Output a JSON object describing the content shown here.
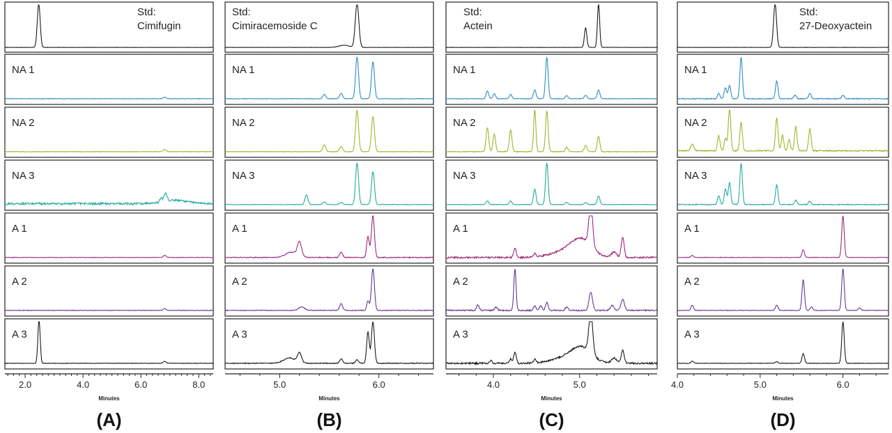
{
  "figure": {
    "colors": {
      "std": "#1a1a1a",
      "NA 1": "#2b8cc4",
      "NA 2": "#9fb52b",
      "NA 3": "#23a8a0",
      "A 1": "#9b2a78",
      "A 2": "#6a3592",
      "A 3": "#1a1a1a"
    }
  },
  "chart_data": [
    {
      "type": "line",
      "panel_label": "(A)",
      "xlabel": "Minutes",
      "xlim": [
        1.3,
        8.5
      ],
      "x_ticks": [
        "2.0",
        "4.0",
        "6.0",
        "8.0"
      ],
      "x_tick_values": [
        2,
        4,
        6,
        8
      ],
      "std_label": [
        "Std:",
        "Cimifugin"
      ],
      "rows": [
        {
          "label": "",
          "key": "std",
          "peaks": [
            [
              2.47,
              1.0,
              0.05
            ]
          ],
          "baseline": 0.03,
          "noise": 0.004
        },
        {
          "label": "NA 1",
          "key": "NA 1",
          "peaks": [
            [
              6.82,
              0.04,
              0.05
            ]
          ],
          "baseline": 0.05,
          "noise": 0.006
        },
        {
          "label": "NA 2",
          "key": "NA 2",
          "peaks": [
            [
              6.82,
              0.05,
              0.05
            ]
          ],
          "baseline": 0.05,
          "noise": 0.006
        },
        {
          "label": "NA 3",
          "key": "NA 3",
          "peaks": [
            [
              6.85,
              0.18,
              0.05
            ],
            [
              6.7,
              0.08,
              0.05
            ],
            [
              7.2,
              0.08,
              0.4
            ]
          ],
          "baseline": 0.07,
          "noise": 0.025
        },
        {
          "label": "A 1",
          "key": "A 1",
          "peaks": [
            [
              6.82,
              0.05,
              0.05
            ]
          ],
          "baseline": 0.05,
          "noise": 0.006
        },
        {
          "label": "A 2",
          "key": "A 2",
          "peaks": [
            [
              6.82,
              0.04,
              0.05
            ]
          ],
          "baseline": 0.05,
          "noise": 0.006
        },
        {
          "label": "A 3",
          "key": "A 3",
          "peaks": [
            [
              2.48,
              1.0,
              0.04
            ],
            [
              6.82,
              0.04,
              0.05
            ]
          ],
          "baseline": 0.05,
          "noise": 0.006
        }
      ]
    },
    {
      "type": "line",
      "panel_label": "(B)",
      "xlabel": "Minutes",
      "xlim": [
        4.45,
        6.55
      ],
      "x_ticks": [
        "5.0",
        "6.0"
      ],
      "x_tick_values": [
        5,
        6
      ],
      "std_label": [
        "Std:",
        "Cimiracemoside C"
      ],
      "rows": [
        {
          "label": "",
          "key": "std",
          "peaks": [
            [
              5.78,
              1.0,
              0.018
            ],
            [
              5.65,
              0.05,
              0.05
            ]
          ],
          "baseline": 0.03,
          "noise": 0.004
        },
        {
          "label": "NA 1",
          "key": "NA 1",
          "peaks": [
            [
              5.45,
              0.1,
              0.015
            ],
            [
              5.62,
              0.12,
              0.015
            ],
            [
              5.78,
              0.95,
              0.015
            ],
            [
              5.94,
              0.85,
              0.015
            ]
          ],
          "baseline": 0.05,
          "noise": 0.006
        },
        {
          "label": "NA 2",
          "key": "NA 2",
          "peaks": [
            [
              5.45,
              0.15,
              0.015
            ],
            [
              5.62,
              0.12,
              0.015
            ],
            [
              5.78,
              0.95,
              0.015
            ],
            [
              5.94,
              0.8,
              0.015
            ]
          ],
          "baseline": 0.05,
          "noise": 0.006
        },
        {
          "label": "NA 3",
          "key": "NA 3",
          "peaks": [
            [
              5.27,
              0.22,
              0.015
            ],
            [
              5.45,
              0.06,
              0.015
            ],
            [
              5.62,
              0.05,
              0.015
            ],
            [
              5.78,
              0.95,
              0.015
            ],
            [
              5.94,
              0.75,
              0.015
            ]
          ],
          "baseline": 0.05,
          "noise": 0.006
        },
        {
          "label": "A 1",
          "key": "A 1",
          "peaks": [
            [
              5.2,
              0.32,
              0.02
            ],
            [
              5.12,
              0.12,
              0.06
            ],
            [
              5.62,
              0.12,
              0.015
            ],
            [
              5.89,
              0.48,
              0.013
            ],
            [
              5.94,
              0.95,
              0.015
            ]
          ],
          "baseline": 0.05,
          "noise": 0.01
        },
        {
          "label": "A 2",
          "key": "A 2",
          "peaks": [
            [
              5.22,
              0.08,
              0.03
            ],
            [
              5.62,
              0.15,
              0.015
            ],
            [
              5.89,
              0.22,
              0.012
            ],
            [
              5.94,
              0.95,
              0.015
            ]
          ],
          "baseline": 0.05,
          "noise": 0.008
        },
        {
          "label": "A 3",
          "key": "A 3",
          "peaks": [
            [
              5.2,
              0.22,
              0.02
            ],
            [
              5.1,
              0.12,
              0.06
            ],
            [
              5.62,
              0.1,
              0.015
            ],
            [
              5.78,
              0.08,
              0.015
            ],
            [
              5.89,
              0.72,
              0.013
            ],
            [
              5.94,
              0.95,
              0.015
            ]
          ],
          "baseline": 0.05,
          "noise": 0.01
        }
      ]
    },
    {
      "type": "line",
      "panel_label": "(C)",
      "xlabel": "Minutes",
      "xlim": [
        3.45,
        5.9
      ],
      "x_ticks": [
        "4.0",
        "5.0"
      ],
      "x_tick_values": [
        4,
        5
      ],
      "std_label": [
        "Std:",
        "Actein"
      ],
      "rows": [
        {
          "label": "",
          "key": "std",
          "peaks": [
            [
              5.07,
              0.45,
              0.014
            ],
            [
              5.22,
              1.0,
              0.013
            ]
          ],
          "baseline": 0.03,
          "noise": 0.004
        },
        {
          "label": "NA 1",
          "key": "NA 1",
          "peaks": [
            [
              3.93,
              0.18,
              0.015
            ],
            [
              4.01,
              0.12,
              0.015
            ],
            [
              4.2,
              0.1,
              0.015
            ],
            [
              4.48,
              0.2,
              0.015
            ],
            [
              4.62,
              0.95,
              0.015
            ],
            [
              4.85,
              0.07,
              0.015
            ],
            [
              5.07,
              0.08,
              0.015
            ],
            [
              5.22,
              0.2,
              0.015
            ]
          ],
          "baseline": 0.05,
          "noise": 0.006
        },
        {
          "label": "NA 2",
          "key": "NA 2",
          "peaks": [
            [
              3.93,
              0.55,
              0.015
            ],
            [
              4.01,
              0.4,
              0.015
            ],
            [
              4.2,
              0.5,
              0.015
            ],
            [
              4.48,
              0.95,
              0.013
            ],
            [
              4.62,
              0.92,
              0.015
            ],
            [
              4.85,
              0.1,
              0.015
            ],
            [
              5.07,
              0.15,
              0.015
            ],
            [
              5.22,
              0.35,
              0.015
            ]
          ],
          "baseline": 0.05,
          "noise": 0.008
        },
        {
          "label": "NA 3",
          "key": "NA 3",
          "peaks": [
            [
              3.93,
              0.08,
              0.015
            ],
            [
              4.2,
              0.08,
              0.015
            ],
            [
              4.48,
              0.35,
              0.015
            ],
            [
              4.62,
              0.95,
              0.015
            ],
            [
              4.85,
              0.05,
              0.015
            ],
            [
              5.07,
              0.05,
              0.015
            ],
            [
              5.22,
              0.2,
              0.015
            ]
          ],
          "baseline": 0.05,
          "noise": 0.006
        },
        {
          "label": "A 1",
          "key": "A 1",
          "peaks": [
            [
              4.25,
              0.22,
              0.015
            ],
            [
              4.48,
              0.08,
              0.015
            ],
            [
              5.13,
              0.95,
              0.022
            ],
            [
              5.02,
              0.4,
              0.12
            ],
            [
              4.8,
              0.12,
              0.15
            ],
            [
              5.4,
              0.12,
              0.03
            ],
            [
              5.5,
              0.45,
              0.017
            ]
          ],
          "baseline": 0.05,
          "noise": 0.02
        },
        {
          "label": "A 2",
          "key": "A 2",
          "peaks": [
            [
              3.82,
              0.12,
              0.015
            ],
            [
              4.03,
              0.08,
              0.015
            ],
            [
              4.25,
              0.95,
              0.013
            ],
            [
              4.48,
              0.1,
              0.015
            ],
            [
              4.55,
              0.1,
              0.015
            ],
            [
              4.62,
              0.18,
              0.015
            ],
            [
              4.85,
              0.08,
              0.015
            ],
            [
              5.13,
              0.42,
              0.02
            ],
            [
              5.38,
              0.12,
              0.02
            ],
            [
              5.5,
              0.25,
              0.02
            ]
          ],
          "baseline": 0.05,
          "noise": 0.015
        },
        {
          "label": "A 3",
          "key": "A 3",
          "peaks": [
            [
              3.97,
              0.06,
              0.015
            ],
            [
              4.2,
              0.1,
              0.015
            ],
            [
              4.25,
              0.25,
              0.015
            ],
            [
              4.48,
              0.08,
              0.015
            ],
            [
              5.13,
              0.95,
              0.022
            ],
            [
              5.02,
              0.35,
              0.12
            ],
            [
              4.8,
              0.1,
              0.15
            ],
            [
              5.4,
              0.12,
              0.03
            ],
            [
              5.5,
              0.3,
              0.017
            ]
          ],
          "baseline": 0.05,
          "noise": 0.02
        }
      ]
    },
    {
      "type": "line",
      "panel_label": "(D)",
      "xlabel": "Minutes",
      "xlim": [
        4.0,
        6.55
      ],
      "x_ticks": [
        "4.0",
        "5.0",
        "6.0"
      ],
      "x_tick_values": [
        4,
        5,
        6
      ],
      "std_label": [
        "Std:",
        "27-Deoxyactein"
      ],
      "rows": [
        {
          "label": "",
          "key": "std",
          "peaks": [
            [
              5.18,
              1.0,
              0.018
            ]
          ],
          "baseline": 0.03,
          "noise": 0.004
        },
        {
          "label": "NA 1",
          "key": "NA 1",
          "peaks": [
            [
              4.5,
              0.12,
              0.015
            ],
            [
              4.58,
              0.25,
              0.015
            ],
            [
              4.63,
              0.3,
              0.015
            ],
            [
              4.77,
              0.95,
              0.015
            ],
            [
              5.2,
              0.4,
              0.015
            ],
            [
              5.42,
              0.08,
              0.015
            ],
            [
              5.6,
              0.12,
              0.015
            ],
            [
              6.0,
              0.08,
              0.015
            ]
          ],
          "baseline": 0.05,
          "noise": 0.01
        },
        {
          "label": "NA 2",
          "key": "NA 2",
          "peaks": [
            [
              4.18,
              0.15,
              0.02
            ],
            [
              4.5,
              0.35,
              0.015
            ],
            [
              4.58,
              0.28,
              0.015
            ],
            [
              4.63,
              0.95,
              0.015
            ],
            [
              4.77,
              0.65,
              0.015
            ],
            [
              5.2,
              0.75,
              0.015
            ],
            [
              5.27,
              0.35,
              0.015
            ],
            [
              5.35,
              0.25,
              0.015
            ],
            [
              5.43,
              0.55,
              0.015
            ],
            [
              5.6,
              0.5,
              0.015
            ]
          ],
          "baseline": 0.07,
          "noise": 0.015
        },
        {
          "label": "NA 3",
          "key": "NA 3",
          "peaks": [
            [
              4.5,
              0.2,
              0.015
            ],
            [
              4.58,
              0.35,
              0.015
            ],
            [
              4.63,
              0.5,
              0.015
            ],
            [
              4.77,
              0.95,
              0.015
            ],
            [
              5.2,
              0.45,
              0.015
            ],
            [
              5.43,
              0.1,
              0.015
            ],
            [
              5.6,
              0.08,
              0.015
            ]
          ],
          "baseline": 0.05,
          "noise": 0.01
        },
        {
          "label": "A 1",
          "key": "A 1",
          "peaks": [
            [
              4.18,
              0.05,
              0.015
            ],
            [
              5.52,
              0.18,
              0.015
            ],
            [
              6.0,
              0.95,
              0.015
            ]
          ],
          "baseline": 0.05,
          "noise": 0.006
        },
        {
          "label": "A 2",
          "key": "A 2",
          "peaks": [
            [
              4.18,
              0.12,
              0.015
            ],
            [
              5.2,
              0.12,
              0.015
            ],
            [
              5.52,
              0.7,
              0.015
            ],
            [
              5.62,
              0.08,
              0.015
            ],
            [
              6.0,
              0.95,
              0.015
            ],
            [
              6.2,
              0.06,
              0.015
            ]
          ],
          "baseline": 0.05,
          "noise": 0.006
        },
        {
          "label": "A 3",
          "key": "A 3",
          "peaks": [
            [
              4.18,
              0.05,
              0.015
            ],
            [
              5.2,
              0.04,
              0.015
            ],
            [
              5.52,
              0.22,
              0.015
            ],
            [
              6.0,
              0.95,
              0.015
            ]
          ],
          "baseline": 0.05,
          "noise": 0.006
        }
      ]
    }
  ]
}
